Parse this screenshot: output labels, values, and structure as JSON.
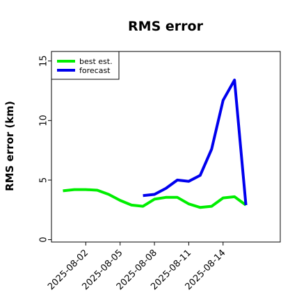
{
  "chart_data": {
    "type": "line",
    "title": "RMS error",
    "xlabel": "",
    "ylabel": "RMS error (km)",
    "ylim": [
      -0.2,
      15.8
    ],
    "xlim": [
      "2025-07-30",
      "2025-08-19"
    ],
    "yticks": [
      0,
      5,
      10,
      15
    ],
    "xticks": [
      "2025-08-02",
      "2025-08-05",
      "2025-08-08",
      "2025-08-11",
      "2025-08-14"
    ],
    "grid": false,
    "legend_position": "top-left",
    "series": [
      {
        "name": "best est.",
        "color": "#00ee00",
        "points": [
          [
            "2025-07-31",
            4.1
          ],
          [
            "2025-08-01",
            4.2
          ],
          [
            "2025-08-02",
            4.2
          ],
          [
            "2025-08-03",
            4.15
          ],
          [
            "2025-08-04",
            3.8
          ],
          [
            "2025-08-05",
            3.3
          ],
          [
            "2025-08-06",
            2.9
          ],
          [
            "2025-08-07",
            2.8
          ],
          [
            "2025-08-08",
            3.4
          ],
          [
            "2025-08-09",
            3.55
          ],
          [
            "2025-08-10",
            3.55
          ],
          [
            "2025-08-11",
            3.0
          ],
          [
            "2025-08-12",
            2.7
          ],
          [
            "2025-08-13",
            2.8
          ],
          [
            "2025-08-14",
            3.5
          ],
          [
            "2025-08-15",
            3.6
          ],
          [
            "2025-08-16",
            2.9
          ]
        ]
      },
      {
        "name": "forecast",
        "color": "#0000ee",
        "points": [
          [
            "2025-08-07",
            3.7
          ],
          [
            "2025-08-08",
            3.8
          ],
          [
            "2025-08-09",
            4.3
          ],
          [
            "2025-08-10",
            5.0
          ],
          [
            "2025-08-11",
            4.9
          ],
          [
            "2025-08-12",
            5.4
          ],
          [
            "2025-08-13",
            7.6
          ],
          [
            "2025-08-14",
            11.7
          ],
          [
            "2025-08-15",
            13.4
          ],
          [
            "2025-08-16",
            2.9
          ]
        ]
      }
    ]
  }
}
